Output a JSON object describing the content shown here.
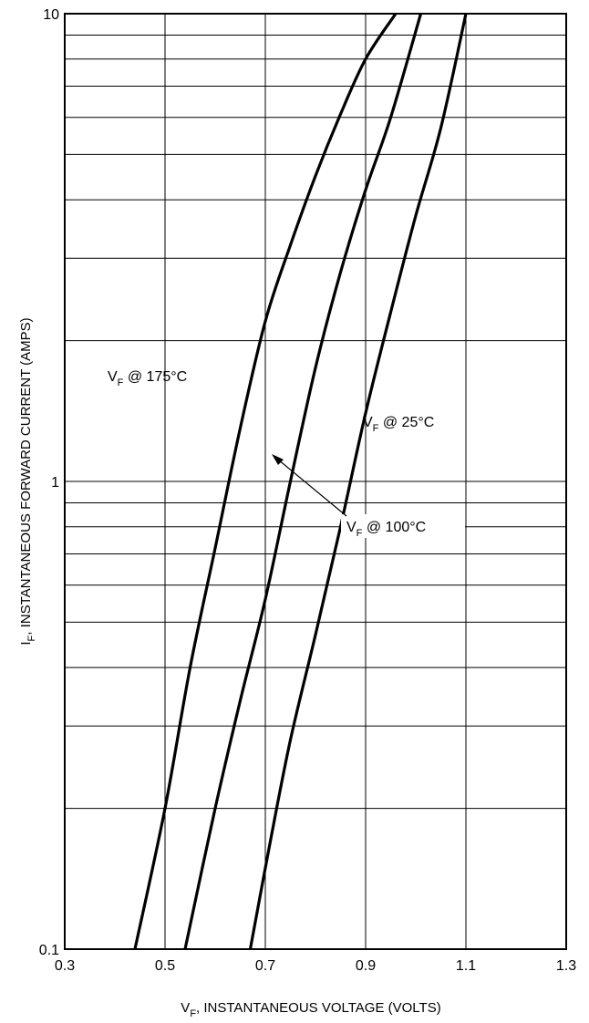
{
  "chart_data": {
    "type": "line",
    "scale": {
      "x": "linear",
      "y": "log"
    },
    "xlim": [
      0.3,
      1.3
    ],
    "ylim": [
      0.1,
      10
    ],
    "grid": true,
    "x_ticks": [
      "0.3",
      "0.5",
      "0.7",
      "0.9",
      "1.1",
      "1.3"
    ],
    "y_ticks": [
      "0.1",
      "1",
      "10"
    ],
    "xlabel": {
      "main": "V",
      "sub": "F",
      "rest": ", INSTANTANEOUS VOLTAGE (VOLTS)"
    },
    "ylabel": {
      "main": "I",
      "sub": "F",
      "rest": ", INSTANTANEOUS FORWARD CURRENT (AMPS)"
    },
    "series": [
      {
        "label": {
          "main": "V",
          "sub": "F",
          "rest": " @ 175°C"
        },
        "color": "#000000",
        "points": [
          [
            0.44,
            0.1
          ],
          [
            0.5,
            0.2
          ],
          [
            0.55,
            0.4
          ],
          [
            0.6,
            0.72
          ],
          [
            0.65,
            1.3
          ],
          [
            0.7,
            2.2
          ],
          [
            0.75,
            3.2
          ],
          [
            0.8,
            4.5
          ],
          [
            0.85,
            6.1
          ],
          [
            0.9,
            8.0
          ],
          [
            0.96,
            10
          ]
        ]
      },
      {
        "label": {
          "main": "V",
          "sub": "F",
          "rest": " @ 100°C"
        },
        "color": "#000000",
        "points": [
          [
            0.54,
            0.1
          ],
          [
            0.6,
            0.2
          ],
          [
            0.65,
            0.34
          ],
          [
            0.7,
            0.56
          ],
          [
            0.75,
            1.0
          ],
          [
            0.8,
            1.75
          ],
          [
            0.85,
            2.8
          ],
          [
            0.9,
            4.2
          ],
          [
            0.95,
            6.0
          ],
          [
            1.01,
            10
          ]
        ]
      },
      {
        "label": {
          "main": "V",
          "sub": "F",
          "rest": " @ 25°C"
        },
        "color": "#000000",
        "points": [
          [
            0.67,
            0.1
          ],
          [
            0.71,
            0.17
          ],
          [
            0.75,
            0.28
          ],
          [
            0.8,
            0.47
          ],
          [
            0.85,
            0.8
          ],
          [
            0.9,
            1.4
          ],
          [
            0.95,
            2.3
          ],
          [
            1.0,
            3.7
          ],
          [
            1.05,
            5.7
          ],
          [
            1.1,
            10
          ]
        ]
      }
    ]
  }
}
